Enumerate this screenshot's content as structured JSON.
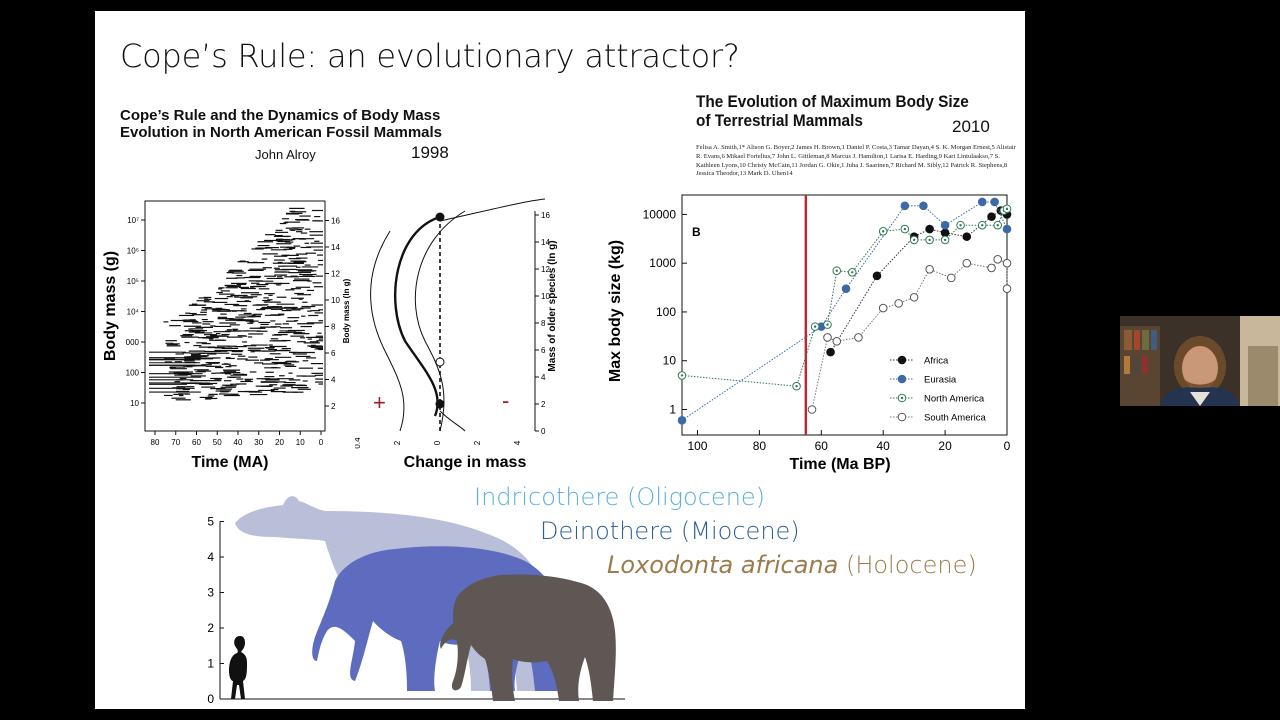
{
  "slide": {
    "title": "Cope’s Rule: an evolutionary attractor?"
  },
  "left_paper": {
    "title_line1": "Cope’s Rule and the Dynamics of Body Mass",
    "title_line2": "Evolution in North American Fossil Mammals",
    "author": "John Alroy",
    "year": "1998",
    "left_chart": {
      "ylabel": "Body mass (g)",
      "xlabel": "Time (MA)",
      "right_axis_label": "Body mass (ln g)",
      "x_ticks": [
        "80",
        "70",
        "60",
        "50",
        "40",
        "30",
        "20",
        "10",
        "0"
      ],
      "left_ticks": [
        "10",
        "100",
        "000",
        "10⁴",
        "10⁵",
        "10⁶",
        "10⁷"
      ],
      "right_ticks": [
        "2",
        "4",
        "6",
        "8",
        "10",
        "12",
        "14",
        "16"
      ]
    },
    "right_chart": {
      "xlabel": "Change in mass",
      "right_axis_label": "Mass of older species (ln g)",
      "x_ticks": [
        "0.4",
        "2",
        "0",
        "2",
        "4"
      ],
      "right_ticks": [
        "0",
        "2",
        "4",
        "6",
        "8",
        "10",
        "12",
        "14",
        "16"
      ],
      "plus": "+",
      "minus": "-"
    }
  },
  "right_paper": {
    "title_line1": "The Evolution of Maximum Body Size",
    "title_line2": "of Terrestrial Mammals",
    "year": "2010",
    "authors_text": "Felisa A. Smith,1* Alison G. Boyer,2 James H. Brown,1 Daniel P. Costa,3 Tamar Dayan,4 S. K. Morgan Ernest,5 Alistair R. Evans,6 Mikael Fortelius,7 John L. Gittleman,8 Marcus J. Hamilton,1 Larisa E. Harding,9 Kari Lintulaakso,7 S. Kathleen Lyons,10 Christy McCain,11 Jordan G. Okie,1 Juha J. Saarinen,7 Richard M. Sibly,12 Patrick R. Stephens,8 Jessica Theodor,13 Mark D. Uhen14"
  },
  "chart_data": {
    "type": "line",
    "panel_label": "B",
    "xlabel": "Time (Ma BP)",
    "ylabel": "Max body size (kg)",
    "y_scale": "log",
    "xlim": [
      105,
      0
    ],
    "ylim": [
      0.3,
      25000
    ],
    "x_ticks": [
      "100",
      "80",
      "60",
      "40",
      "20",
      "0"
    ],
    "y_ticks": [
      "1",
      "10",
      "100",
      "1000",
      "10000"
    ],
    "vertical_line_x": 65,
    "legend": "lower-right",
    "series": [
      {
        "name": "Africa",
        "marker": "filled-black",
        "points": [
          [
            57,
            15
          ],
          [
            42,
            550
          ],
          [
            30,
            3500
          ],
          [
            25,
            5000
          ],
          [
            20,
            4200
          ],
          [
            13,
            3500
          ],
          [
            5,
            9000
          ],
          [
            2,
            12000
          ],
          [
            0,
            10000
          ]
        ]
      },
      {
        "name": "Eurasia",
        "marker": "filled-blue",
        "points": [
          [
            105,
            0.6
          ],
          [
            60,
            50
          ],
          [
            52,
            300
          ],
          [
            33,
            15000
          ],
          [
            27,
            15000
          ],
          [
            20,
            6000
          ],
          [
            8,
            18000
          ],
          [
            4,
            18000
          ],
          [
            0,
            5000
          ]
        ]
      },
      {
        "name": "North America",
        "marker": "dot-green",
        "points": [
          [
            105,
            5
          ],
          [
            68,
            3
          ],
          [
            62,
            50
          ],
          [
            58,
            55
          ],
          [
            55,
            700
          ],
          [
            50,
            650
          ],
          [
            40,
            4500
          ],
          [
            33,
            5000
          ],
          [
            30,
            3000
          ],
          [
            25,
            3000
          ],
          [
            20,
            3000
          ],
          [
            15,
            6000
          ],
          [
            8,
            6000
          ],
          [
            3,
            6000
          ],
          [
            1,
            12000
          ],
          [
            0,
            13000
          ]
        ]
      },
      {
        "name": "South America",
        "marker": "open",
        "points": [
          [
            63,
            1
          ],
          [
            58,
            30
          ],
          [
            55,
            25
          ],
          [
            48,
            30
          ],
          [
            40,
            120
          ],
          [
            35,
            150
          ],
          [
            30,
            200
          ],
          [
            25,
            750
          ],
          [
            18,
            500
          ],
          [
            13,
            1000
          ],
          [
            5,
            800
          ],
          [
            3,
            1200
          ],
          [
            0,
            1000
          ],
          [
            0,
            300
          ]
        ]
      }
    ]
  },
  "size_figure": {
    "y_ticks": [
      "0",
      "1",
      "2",
      "3",
      "4",
      "5"
    ],
    "species": [
      {
        "name_plain": "Indricothere (Oligocene)",
        "color": "#5aaee0"
      },
      {
        "name_plain": "Deinothere (Miocene)",
        "color": "#2e5f93"
      },
      {
        "name_italic": "Loxodonta africana",
        "name_suffix": " (Holocene)",
        "color": "#9b7b4c"
      }
    ]
  },
  "colors": {
    "red_line": "#c0272d",
    "eurasia_blue": "#3d6aa6",
    "na_green": "#2f7a55",
    "indricothere": "#b9bfd9",
    "deinothere": "#5d6cbf",
    "loxodonta": "#5f5753"
  }
}
